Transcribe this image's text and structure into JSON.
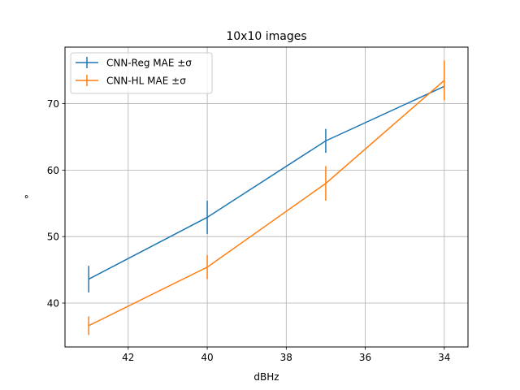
{
  "chart_data": {
    "type": "line",
    "title": "10x10 images",
    "xlabel": "dBHz",
    "ylabel": "°",
    "x": [
      43,
      40,
      37,
      34
    ],
    "xlim": [
      43.6,
      33.4
    ],
    "ylim": [
      33.4,
      78.5
    ],
    "x_axis_inverted": true,
    "xticks": [
      42,
      40,
      38,
      36,
      34
    ],
    "yticks": [
      40,
      50,
      60,
      70
    ],
    "grid": true,
    "legend_position": "top-left",
    "series": [
      {
        "name": "CNN-Reg MAE ±σ",
        "color": "#1f77b4",
        "values": [
          43.6,
          52.9,
          64.4,
          72.6
        ],
        "errors": [
          2.0,
          2.5,
          1.8,
          0.4
        ]
      },
      {
        "name": "CNN-HL MAE ±σ",
        "color": "#ff7f0e",
        "values": [
          36.6,
          45.4,
          58.0,
          73.5
        ],
        "errors": [
          1.4,
          1.8,
          2.6,
          3.0
        ]
      }
    ]
  }
}
